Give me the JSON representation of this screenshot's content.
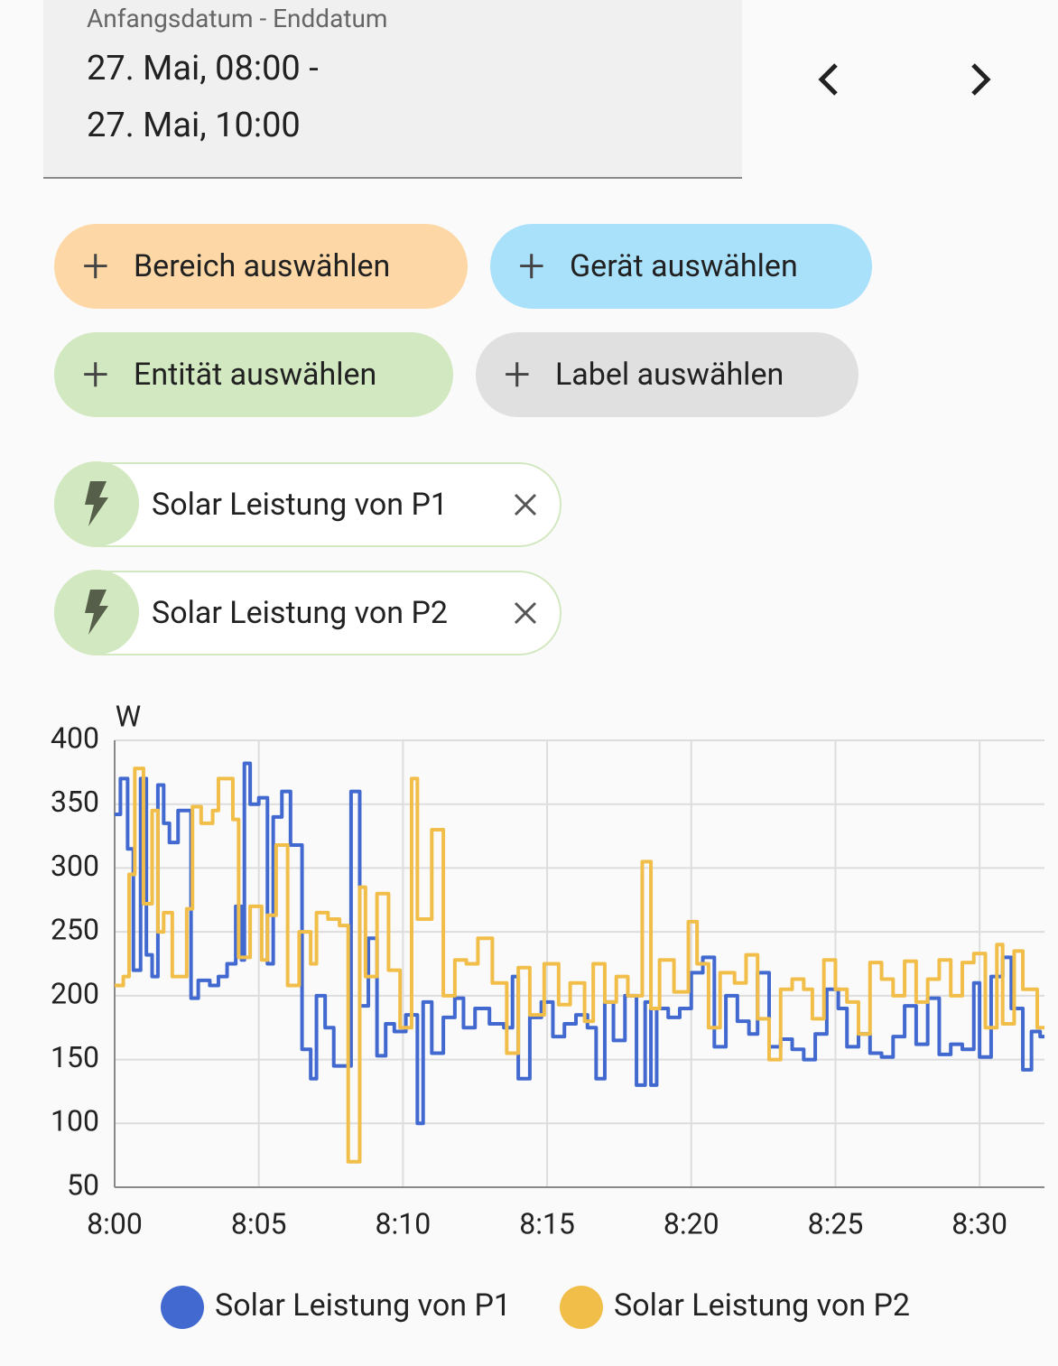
{
  "date_range": {
    "label": "Anfangsdatum - Enddatum",
    "start": "27. Mai, 08:00 -",
    "end": "27. Mai, 10:00"
  },
  "chips": [
    "Bereich auswählen",
    "Gerät auswählen",
    "Entität auswählen",
    "Label auswählen"
  ],
  "selected": [
    "Solar Leistung von P1",
    "Solar Leistung von P2"
  ],
  "chart_data": {
    "type": "line",
    "step": true,
    "y_label": "W",
    "xlim": [
      0,
      32.25
    ],
    "xticks": [
      {
        "value": 0,
        "label": "8:00"
      },
      {
        "value": 5,
        "label": "8:05"
      },
      {
        "value": 10,
        "label": "8:10"
      },
      {
        "value": 15,
        "label": "8:15"
      },
      {
        "value": 20,
        "label": "8:20"
      },
      {
        "value": 25,
        "label": "8:25"
      },
      {
        "value": 30,
        "label": "8:30"
      }
    ],
    "ylim": [
      50,
      400
    ],
    "yticks": [
      50,
      100,
      150,
      200,
      250,
      300,
      350,
      400
    ],
    "grid": true,
    "legend": "bottom",
    "series": [
      {
        "name": "Solar Leistung von P1",
        "color": "#4269d0",
        "x": [
          0,
          0.2,
          0.45,
          0.65,
          0.9,
          1.1,
          1.3,
          1.5,
          1.7,
          1.9,
          2.2,
          2.65,
          2.9,
          3.3,
          3.6,
          3.9,
          4.2,
          4.4,
          4.5,
          4.7,
          5.0,
          5.3,
          5.5,
          5.8,
          6.1,
          6.5,
          6.8,
          7.0,
          7.3,
          7.6,
          8.2,
          8.5,
          8.8,
          9.1,
          9.4,
          9.7,
          10.1,
          10.5,
          10.7,
          11.0,
          11.4,
          11.8,
          12.1,
          12.5,
          13.0,
          13.5,
          13.8,
          14.0,
          14.4,
          14.8,
          15.2,
          15.6,
          16.0,
          16.4,
          16.7,
          17.0,
          17.3,
          17.7,
          18.1,
          18.4,
          18.6,
          18.8,
          19.2,
          19.6,
          20.0,
          20.4,
          20.8,
          21.2,
          21.6,
          22.0,
          22.3,
          22.7,
          23.1,
          23.5,
          23.9,
          24.3,
          24.7,
          25.1,
          25.4,
          25.8,
          26.2,
          26.6,
          27.0,
          27.4,
          27.8,
          28.2,
          28.6,
          29.0,
          29.4,
          29.8,
          30.0,
          30.4,
          30.8,
          31.1,
          31.5,
          31.8,
          32.1
        ],
        "values": [
          342,
          370,
          315,
          220,
          370,
          232,
          215,
          365,
          335,
          320,
          345,
          198,
          212,
          208,
          215,
          225,
          270,
          228,
          382,
          350,
          355,
          225,
          340,
          360,
          318,
          158,
          135,
          200,
          175,
          145,
          360,
          192,
          245,
          153,
          178,
          172,
          185,
          100,
          195,
          155,
          183,
          198,
          175,
          190,
          178,
          175,
          215,
          135,
          183,
          195,
          168,
          178,
          185,
          175,
          135,
          195,
          165,
          200,
          130,
          195,
          130,
          190,
          183,
          190,
          218,
          230,
          160,
          200,
          180,
          170,
          218,
          160,
          166,
          158,
          150,
          170,
          205,
          190,
          160,
          170,
          155,
          152,
          168,
          192,
          162,
          198,
          154,
          162,
          158,
          210,
          152,
          215,
          230,
          190,
          142,
          172,
          168
        ]
      },
      {
        "name": "Solar Leistung von P2",
        "color": "#f2be4a",
        "x": [
          0,
          0.3,
          0.5,
          0.7,
          1.0,
          1.3,
          1.5,
          1.7,
          2.0,
          2.5,
          2.7,
          3.0,
          3.4,
          3.6,
          4.1,
          4.3,
          4.7,
          5.1,
          5.3,
          5.6,
          6.0,
          6.4,
          6.8,
          7.0,
          7.4,
          7.8,
          8.1,
          8.5,
          8.7,
          9.1,
          9.5,
          9.9,
          10.3,
          10.5,
          11.0,
          11.4,
          11.8,
          12.2,
          12.6,
          13.1,
          13.6,
          14.0,
          14.4,
          14.9,
          15.4,
          15.8,
          16.3,
          16.6,
          17.0,
          17.4,
          17.8,
          18.3,
          18.6,
          18.9,
          19.4,
          19.9,
          20.2,
          20.6,
          21.0,
          21.5,
          21.9,
          22.3,
          22.7,
          23.1,
          23.5,
          23.9,
          24.2,
          24.6,
          25.0,
          25.4,
          25.8,
          26.2,
          26.6,
          27.0,
          27.4,
          27.8,
          28.2,
          28.6,
          29.0,
          29.4,
          29.8,
          30.2,
          30.6,
          30.8,
          31.2,
          31.5,
          32.0
        ],
        "values": [
          208,
          215,
          295,
          378,
          272,
          345,
          250,
          265,
          215,
          268,
          348,
          335,
          345,
          370,
          338,
          230,
          270,
          228,
          263,
          318,
          208,
          250,
          225,
          265,
          260,
          255,
          70,
          285,
          215,
          280,
          220,
          175,
          370,
          260,
          330,
          200,
          228,
          225,
          245,
          210,
          155,
          222,
          185,
          225,
          193,
          210,
          180,
          225,
          195,
          215,
          200,
          305,
          190,
          228,
          203,
          258,
          225,
          175,
          218,
          210,
          232,
          182,
          150,
          205,
          213,
          205,
          182,
          228,
          205,
          195,
          170,
          226,
          213,
          200,
          227,
          195,
          213,
          228,
          200,
          226,
          233,
          175,
          240,
          178,
          235,
          205,
          175
        ]
      }
    ]
  }
}
